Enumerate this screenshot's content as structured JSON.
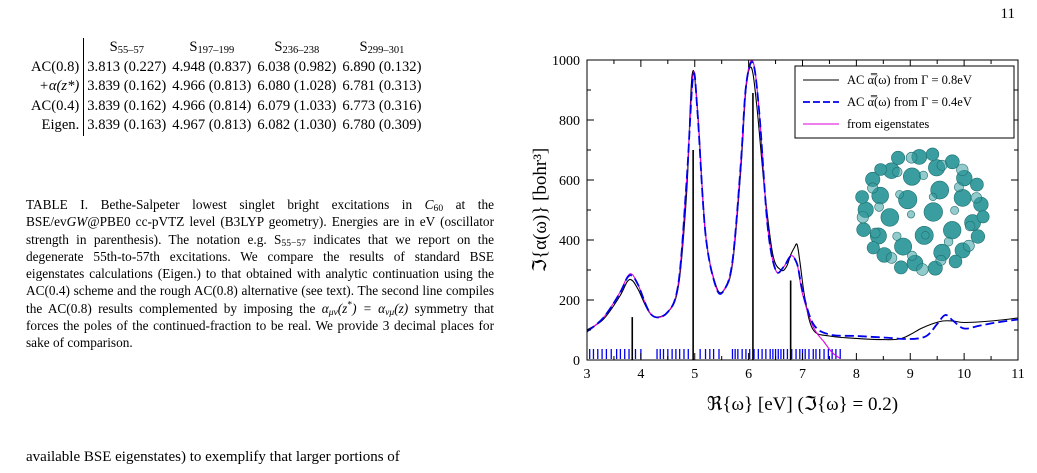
{
  "page_number": "11",
  "table": {
    "columns": [
      {
        "main": "S",
        "sub": "55–57"
      },
      {
        "main": "S",
        "sub": "197–199"
      },
      {
        "main": "S",
        "sub": "236–238"
      },
      {
        "main": "S",
        "sub": "299–301"
      }
    ],
    "rows": [
      {
        "label": "AC(0.8)",
        "cells": [
          "3.813 (0.227)",
          "4.948 (0.837)",
          "6.038 (0.982)",
          "6.890 (0.132)"
        ]
      },
      {
        "label": "+α(z*)",
        "cells": [
          "3.839 (0.162)",
          "4.966 (0.813)",
          "6.080 (1.028)",
          "6.781 (0.313)"
        ]
      },
      {
        "label": "AC(0.4)",
        "cells": [
          "3.839 (0.162)",
          "4.966 (0.814)",
          "6.079 (1.033)",
          "6.773 (0.316)"
        ]
      },
      {
        "label": "Eigen.",
        "cells": [
          "3.839 (0.163)",
          "4.967 (0.813)",
          "6.082 (1.030)",
          "6.780 (0.309)"
        ]
      }
    ]
  },
  "caption": {
    "lead": "TABLE I. Bethe-Salpeter lowest singlet bright excitations in ",
    "mol_main": "C",
    "mol_sub": "60",
    "p1": " at the BSE/ev",
    "gw": "GW",
    "p2": "@PBE0 cc-pVTZ level (B3LYP geometry). Energies are in eV (oscillator strength in parenthesis). The notation e.g. ",
    "s_main": "S",
    "s_sub": "55−57",
    "p3": " indicates that we report on the degenerate 55th-to-57th excitations. We compare the results of standard BSE eigenstates calculations (Eigen.) to that obtained with analytic continuation using the AC(0.4) scheme and the rough AC(0.8) alternative (see text). The second line compiles the AC(0.8) results complemented by imposing the ",
    "sym1": "α",
    "sym1_sub": "μν",
    "sym2": "(z",
    "sym2_sup": "*",
    "sym3": ") = α",
    "sym3_sub": "νμ",
    "sym4": "(z)",
    "p4": " symmetry that forces the poles of the continued-fraction to be real. We provide 3 decimal places for sake of comparison."
  },
  "body_text": "available BSE eigenstates) to exemplify that larger portions of",
  "chart_data": {
    "type": "line",
    "xlabel": "ℜ{ω}  [eV]   (ℑ{ω} = 0.2)",
    "ylabel": "ℑ{α(ω)}  [bohr³]",
    "xlim": [
      3,
      11
    ],
    "ylim": [
      0,
      1000
    ],
    "xticks": [
      3,
      4,
      5,
      6,
      7,
      8,
      9,
      10,
      11
    ],
    "yticks": [
      0,
      200,
      400,
      600,
      800,
      1000
    ],
    "legend_position": "top-right",
    "series": [
      {
        "name": "AC α̿(ω) from Γ = 0.8eV",
        "color": "#000000",
        "style": "solid",
        "x": [
          3.0,
          3.3,
          3.6,
          3.75,
          3.84,
          3.95,
          4.2,
          4.5,
          4.7,
          4.85,
          4.95,
          5.05,
          5.2,
          5.4,
          5.55,
          5.7,
          5.85,
          5.95,
          6.05,
          6.15,
          6.3,
          6.45,
          6.6,
          6.7,
          6.78,
          6.85,
          6.9,
          6.95,
          7.05,
          7.2,
          7.5,
          8.0,
          8.5,
          8.8,
          9.0,
          9.2,
          9.4,
          9.6,
          9.8,
          10.0,
          10.5,
          11.0
        ],
        "y": [
          100,
          135,
          210,
          262,
          265,
          235,
          150,
          160,
          250,
          560,
          950,
          840,
          420,
          245,
          235,
          320,
          620,
          900,
          975,
          850,
          560,
          350,
          300,
          310,
          350,
          375,
          385,
          330,
          200,
          100,
          80,
          72,
          68,
          70,
          85,
          105,
          120,
          130,
          130,
          125,
          130,
          140
        ]
      },
      {
        "name": "AC α̿(ω) from Γ = 0.4eV",
        "color": "#0000ee",
        "style": "dashed",
        "x": [
          3.0,
          3.3,
          3.6,
          3.75,
          3.84,
          3.95,
          4.2,
          4.5,
          4.7,
          4.85,
          4.97,
          5.05,
          5.2,
          5.4,
          5.55,
          5.7,
          5.85,
          5.95,
          6.08,
          6.2,
          6.35,
          6.5,
          6.65,
          6.78,
          6.9,
          7.0,
          7.2,
          7.5,
          8.0,
          8.5,
          9.0,
          9.3,
          9.5,
          9.65,
          9.8,
          10.0,
          10.3,
          10.6,
          11.0
        ],
        "y": [
          95,
          140,
          220,
          275,
          280,
          250,
          150,
          160,
          260,
          600,
          945,
          830,
          420,
          240,
          235,
          330,
          640,
          910,
          990,
          820,
          450,
          300,
          310,
          345,
          320,
          230,
          120,
          85,
          80,
          75,
          70,
          80,
          120,
          150,
          130,
          105,
          115,
          125,
          135
        ]
      },
      {
        "name": "from eigenstates",
        "color": "#dd00dd",
        "style": "solid",
        "x": [
          3.0,
          3.3,
          3.6,
          3.75,
          3.84,
          3.95,
          4.2,
          4.5,
          4.7,
          4.85,
          4.97,
          5.05,
          5.2,
          5.4,
          5.55,
          5.7,
          5.85,
          5.95,
          6.08,
          6.2,
          6.35,
          6.5,
          6.65,
          6.78,
          6.9,
          7.0,
          7.2,
          7.4,
          7.55,
          7.7
        ],
        "y": [
          95,
          140,
          222,
          278,
          285,
          250,
          150,
          160,
          262,
          600,
          950,
          835,
          420,
          240,
          236,
          330,
          645,
          915,
          995,
          820,
          450,
          300,
          310,
          348,
          320,
          220,
          110,
          60,
          25,
          5
        ]
      }
    ],
    "sticks": {
      "color": "#000000",
      "x": [
        3.84,
        4.97,
        6.08,
        6.78
      ],
      "y": [
        143,
        700,
        890,
        265
      ]
    },
    "eigen_ticks": {
      "color": "#0000ee",
      "x": [
        3.05,
        3.12,
        3.2,
        3.28,
        3.36,
        3.45,
        3.55,
        3.62,
        3.7,
        3.78,
        3.9,
        4.0,
        4.3,
        4.36,
        4.42,
        4.5,
        4.58,
        4.65,
        4.72,
        4.8,
        4.88,
        5.1,
        5.2,
        5.28,
        5.35,
        5.45,
        5.7,
        5.75,
        5.8,
        5.88,
        5.95,
        6.02,
        6.1,
        6.18,
        6.25,
        6.32,
        6.4,
        6.45,
        6.5,
        6.55,
        6.6,
        6.65,
        6.72,
        6.8,
        6.88,
        6.95,
        7.0,
        7.05,
        7.12,
        7.2,
        7.25,
        7.32,
        7.4,
        7.48,
        7.55,
        7.62,
        7.7
      ]
    }
  },
  "inset": {
    "description_icon": "c60-molecule-icon",
    "atom_color": "#3a9ea0"
  }
}
